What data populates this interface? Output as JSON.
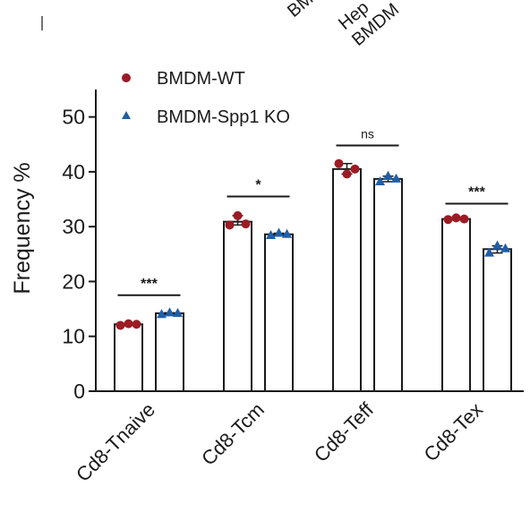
{
  "header_fragments": [
    "BM",
    "Hep",
    "BMDM"
  ],
  "chart_data": {
    "type": "bar",
    "title": "",
    "xlabel": "",
    "ylabel": "Frequency %",
    "ylim": [
      0,
      55
    ],
    "yticks": [
      0,
      10,
      20,
      30,
      40,
      50
    ],
    "grid": false,
    "legend_position": "top-left",
    "categories": [
      "Cd8-Tnaive",
      "Cd8-Tcm",
      "Cd8-Teff",
      "Cd8-Tex"
    ],
    "series": [
      {
        "name": "BMDM-WT",
        "marker": "circle",
        "color": "#9b1c24",
        "values": [
          12.2,
          30.9,
          40.5,
          31.4
        ],
        "points": [
          [
            12.0,
            12.3,
            12.2
          ],
          [
            30.3,
            32.0,
            30.5
          ],
          [
            41.5,
            39.6,
            40.5
          ],
          [
            31.3,
            31.6,
            31.4
          ]
        ]
      },
      {
        "name": "BMDM-Spp1 KO",
        "marker": "triangle",
        "color": "#1f5fa8",
        "values": [
          14.2,
          28.6,
          38.7,
          25.9
        ],
        "points": [
          [
            14.0,
            14.3,
            14.2
          ],
          [
            28.4,
            28.8,
            28.6
          ],
          [
            38.2,
            39.2,
            38.7
          ],
          [
            25.2,
            26.5,
            26.0
          ]
        ]
      }
    ],
    "significance": [
      "***",
      "*",
      "ns",
      "***"
    ],
    "significance_values": [
      17.5,
      35.5,
      44.8,
      34.2
    ]
  }
}
